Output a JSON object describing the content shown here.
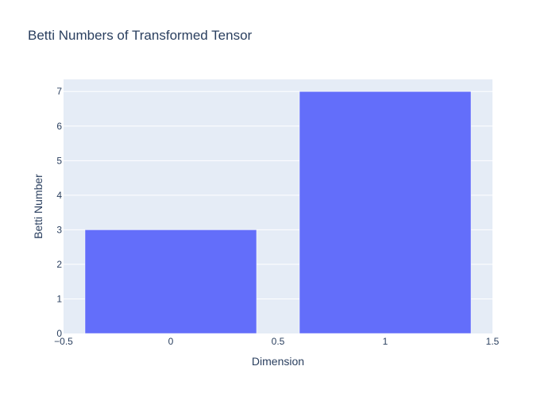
{
  "chart_data": {
    "type": "bar",
    "title": "Betti Numbers of Transformed Tensor",
    "xlabel": "Dimension",
    "ylabel": "Betti Number",
    "x": [
      0,
      1
    ],
    "values": [
      3,
      7
    ],
    "bar_width": 0.8,
    "xlim": [
      -0.5,
      1.5
    ],
    "ylim": [
      0,
      7.35
    ],
    "xticks": [
      -0.5,
      0,
      0.5,
      1,
      1.5
    ],
    "xtick_labels": [
      "−0.5",
      "0",
      "0.5",
      "1",
      "1.5"
    ],
    "yticks": [
      0,
      1,
      2,
      3,
      4,
      5,
      6,
      7
    ],
    "ytick_labels": [
      "0",
      "1",
      "2",
      "3",
      "4",
      "5",
      "6",
      "7"
    ],
    "grid": true,
    "legend": "none",
    "colors": {
      "bar": "#636efa",
      "plot_background": "#e5ecf6",
      "grid": "#ffffff",
      "text": "#2a3f5f"
    }
  }
}
